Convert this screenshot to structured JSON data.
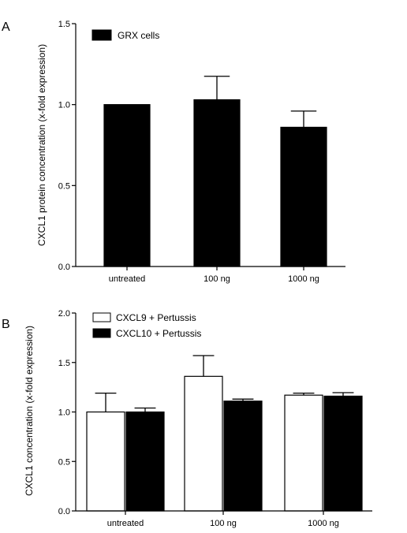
{
  "chart_data": [
    {
      "panel": "A",
      "type": "bar",
      "categories": [
        "untreated",
        "100 ng",
        "1000 ng"
      ],
      "series": [
        {
          "name": "GRX cells",
          "values": [
            1.0,
            1.03,
            0.86
          ],
          "errors": [
            0.0,
            0.145,
            0.1
          ],
          "fill": "#000000"
        }
      ],
      "ylabel": "CXCL1 protein concentration (x-fold expression)",
      "xlabel": "",
      "ylim": [
        0,
        1.5
      ],
      "yticks": [
        "0.0",
        "0.5",
        "1.0",
        "1.5"
      ],
      "legend": "top-left",
      "grid": false
    },
    {
      "panel": "B",
      "type": "bar",
      "categories": [
        "untreated",
        "100 ng",
        "1000 ng"
      ],
      "series": [
        {
          "name": "CXCL9 + Pertussis",
          "values": [
            1.0,
            1.36,
            1.17
          ],
          "errors": [
            0.19,
            0.21,
            0.02
          ],
          "fill": "#ffffff"
        },
        {
          "name": "CXCL10 + Pertussis",
          "values": [
            1.0,
            1.11,
            1.16
          ],
          "errors": [
            0.04,
            0.02,
            0.035
          ],
          "fill": "#000000"
        }
      ],
      "ylabel": "CXCL1 concentration (x-fold expression)",
      "xlabel": "",
      "ylim": [
        0,
        2.0
      ],
      "yticks": [
        "0.0",
        "0.5",
        "1.0",
        "1.5",
        "2.0"
      ],
      "legend": "top-left",
      "grid": false
    }
  ]
}
